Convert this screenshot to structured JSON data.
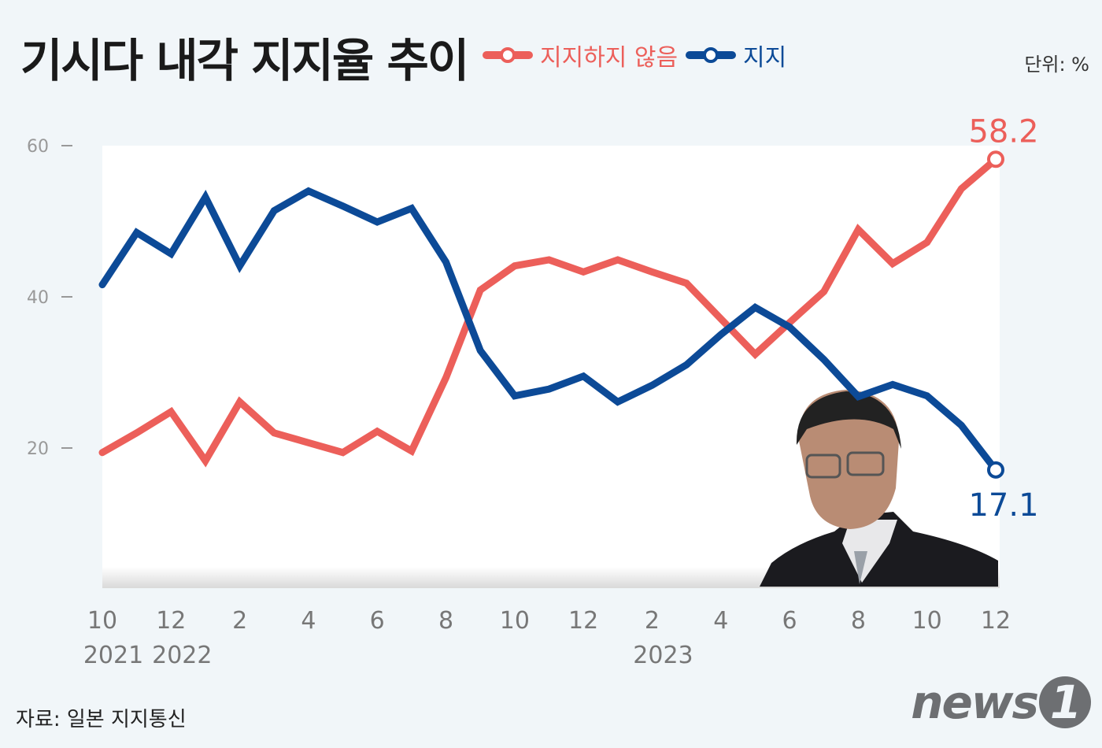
{
  "title": "기시다 내각 지지율 추이",
  "unit": "단위: %",
  "source": "자료: 일본 지지통신",
  "logo_text": "news1",
  "colors": {
    "disapprove": "#ec5f5a",
    "approve": "#0c4a97",
    "background": "#f1f6f9"
  },
  "chart_data": {
    "type": "line",
    "title": "기시다 내각 지지율 추이",
    "ylim": [
      0,
      60
    ],
    "yticks": [
      "20",
      "40",
      "60"
    ],
    "grid": false,
    "legend_placement": "top",
    "x": [
      "2021-10",
      "2021-11",
      "2021-12",
      "2022-01",
      "2022-02",
      "2022-03",
      "2022-04",
      "2022-05",
      "2022-06",
      "2022-07",
      "2022-08",
      "2022-09",
      "2022-10",
      "2022-11",
      "2022-12",
      "2023-01",
      "2023-02",
      "2023-03",
      "2023-04",
      "2023-05",
      "2023-06",
      "2023-07",
      "2023-08",
      "2023-09",
      "2023-10",
      "2023-11",
      "2023-12"
    ],
    "xtick_labels": [
      {
        "month": "10",
        "year": "2021",
        "index": 0
      },
      {
        "month": "12",
        "year": "2022",
        "index": 2
      },
      {
        "month": "2",
        "year": "",
        "index": 4
      },
      {
        "month": "4",
        "year": "",
        "index": 6
      },
      {
        "month": "6",
        "year": "",
        "index": 8
      },
      {
        "month": "8",
        "year": "",
        "index": 10
      },
      {
        "month": "10",
        "year": "",
        "index": 12
      },
      {
        "month": "12",
        "year": "",
        "index": 14
      },
      {
        "month": "2",
        "year": "2023",
        "index": 16
      },
      {
        "month": "4",
        "year": "",
        "index": 18
      },
      {
        "month": "6",
        "year": "",
        "index": 20
      },
      {
        "month": "8",
        "year": "",
        "index": 22
      },
      {
        "month": "10",
        "year": "",
        "index": 24
      },
      {
        "month": "12",
        "year": "",
        "index": 26
      }
    ],
    "series": [
      {
        "name": "지지하지 않음",
        "key": "disapprove",
        "end_label": "58.2",
        "values": [
          19.4,
          22.0,
          24.8,
          18.3,
          26.1,
          22.0,
          20.7,
          19.4,
          22.2,
          19.6,
          29.3,
          40.9,
          44.1,
          44.9,
          43.3,
          44.9,
          43.3,
          41.8,
          37.1,
          32.4,
          36.6,
          40.7,
          48.9,
          44.4,
          47.2,
          54.3,
          58.2
        ]
      },
      {
        "name": "지지",
        "key": "approve",
        "end_label": "17.1",
        "values": [
          41.6,
          48.5,
          45.7,
          53.2,
          44.1,
          51.4,
          54.0,
          52.0,
          49.9,
          51.7,
          44.6,
          32.9,
          26.9,
          27.8,
          29.5,
          26.1,
          28.3,
          31.0,
          35.0,
          38.6,
          36.0,
          31.7,
          26.8,
          28.4,
          26.9,
          23.0,
          17.1
        ]
      }
    ]
  }
}
